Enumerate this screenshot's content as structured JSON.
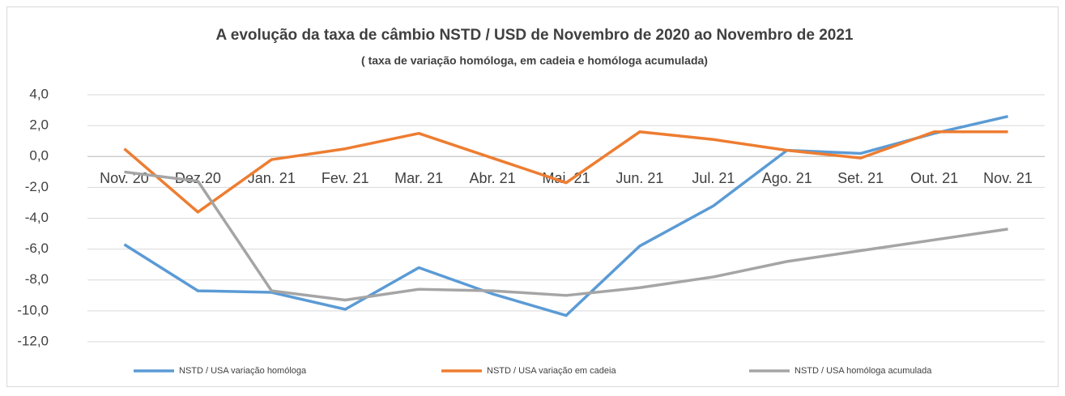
{
  "chart_data": {
    "type": "line",
    "title": "A evolução da taxa de câmbio NSTD / USD de Novembro de 2020 ao Novembro de 2021",
    "subtitle": "( taxa de variação homóloga, em cadeia e homóloga acumulada)",
    "categories": [
      "Nov. 20",
      "Dez.20",
      "Jan. 21",
      "Fev. 21",
      "Mar. 21",
      "Abr. 21",
      "Mai. 21",
      "Jun. 21",
      "Jul. 21",
      "Ago. 21",
      "Set. 21",
      "Out. 21",
      "Nov. 21"
    ],
    "series": [
      {
        "name": "NSTD / USA variação homóloga",
        "color": "#5b9bd5",
        "values": [
          -5.7,
          -8.7,
          -8.8,
          -9.9,
          -7.2,
          -8.9,
          -10.3,
          -5.8,
          -3.2,
          0.4,
          0.2,
          1.5,
          2.6
        ]
      },
      {
        "name": "NSTD / USA variação em cadeia",
        "color": "#ed7d31",
        "values": [
          0.5,
          -3.6,
          -0.2,
          0.5,
          1.5,
          -0.1,
          -1.7,
          1.6,
          1.1,
          0.4,
          -0.1,
          1.6,
          1.6
        ]
      },
      {
        "name": "NSTD / USA homóloga acumulada",
        "color": "#a5a5a5",
        "values": [
          -1.0,
          -1.6,
          -8.7,
          -9.3,
          -8.6,
          -8.7,
          -9.0,
          -8.5,
          -7.8,
          -6.8,
          -6.1,
          -5.4,
          -4.7
        ]
      }
    ],
    "ylim": [
      -12,
      4
    ],
    "yticks": [
      {
        "value": 4,
        "label": "4,0"
      },
      {
        "value": 2,
        "label": "2,0"
      },
      {
        "value": 0,
        "label": "0,0"
      },
      {
        "value": -2,
        "label": "-2,0"
      },
      {
        "value": -4,
        "label": "-4,0"
      },
      {
        "value": -6,
        "label": "-6,0"
      },
      {
        "value": -8,
        "label": "-8,0"
      },
      {
        "value": -10,
        "label": "-10,0"
      },
      {
        "value": -12,
        "label": "-12,0"
      }
    ],
    "grid": true,
    "legend": "bottom"
  }
}
